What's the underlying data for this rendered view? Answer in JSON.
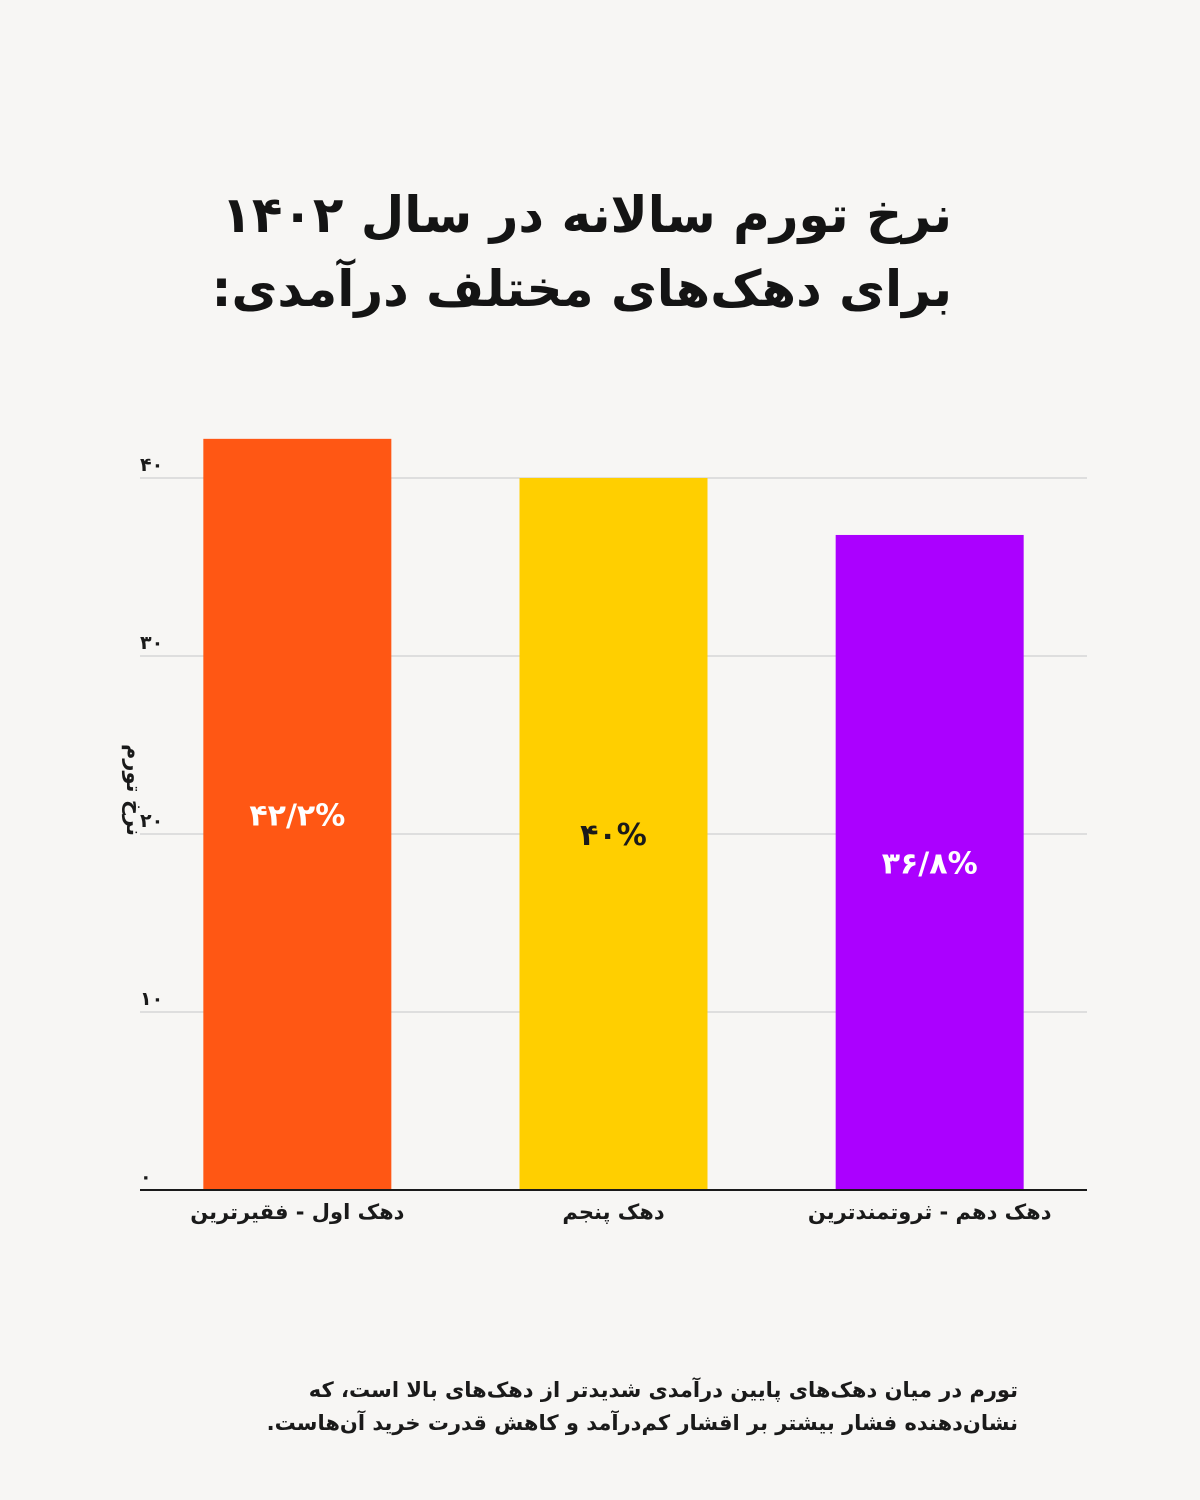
{
  "title": {
    "line1": "نرخ تورم سالانه در سال ۱۴۰۲",
    "line2": "برای دهک‌های مختلف درآمدی:"
  },
  "chart_data": {
    "type": "bar",
    "categories": [
      "دهک اول - فقیرترین",
      "دهک پنجم",
      "دهک دهم - ثروتمندترین"
    ],
    "values": [
      42.2,
      40,
      36.8
    ],
    "value_labels": [
      "۴۲/۲%",
      "۴۰%",
      "۳۶/۸%"
    ],
    "colors": [
      "#ff5714",
      "#ffcf00",
      "#ab00ff"
    ],
    "label_colors": [
      "#ffffff",
      "#1a1a1a",
      "#ffffff"
    ],
    "ylabel": "نرخ تورم",
    "ylim": [
      0,
      40
    ],
    "yticks": [
      0,
      10,
      20,
      30,
      40
    ],
    "ytick_labels": [
      "۰",
      "۱۰",
      "۲۰",
      "۳۰",
      "۴۰"
    ],
    "grid": true
  },
  "footnote": {
    "line1": "تورم در میان دهک‌های پایین درآمدی شدیدتر از دهک‌های بالا است، که",
    "line2": "نشان‌دهنده فشار بیشتر بر اقشار کم‌درآمد و کاهش قدرت خرید آن‌هاست."
  }
}
